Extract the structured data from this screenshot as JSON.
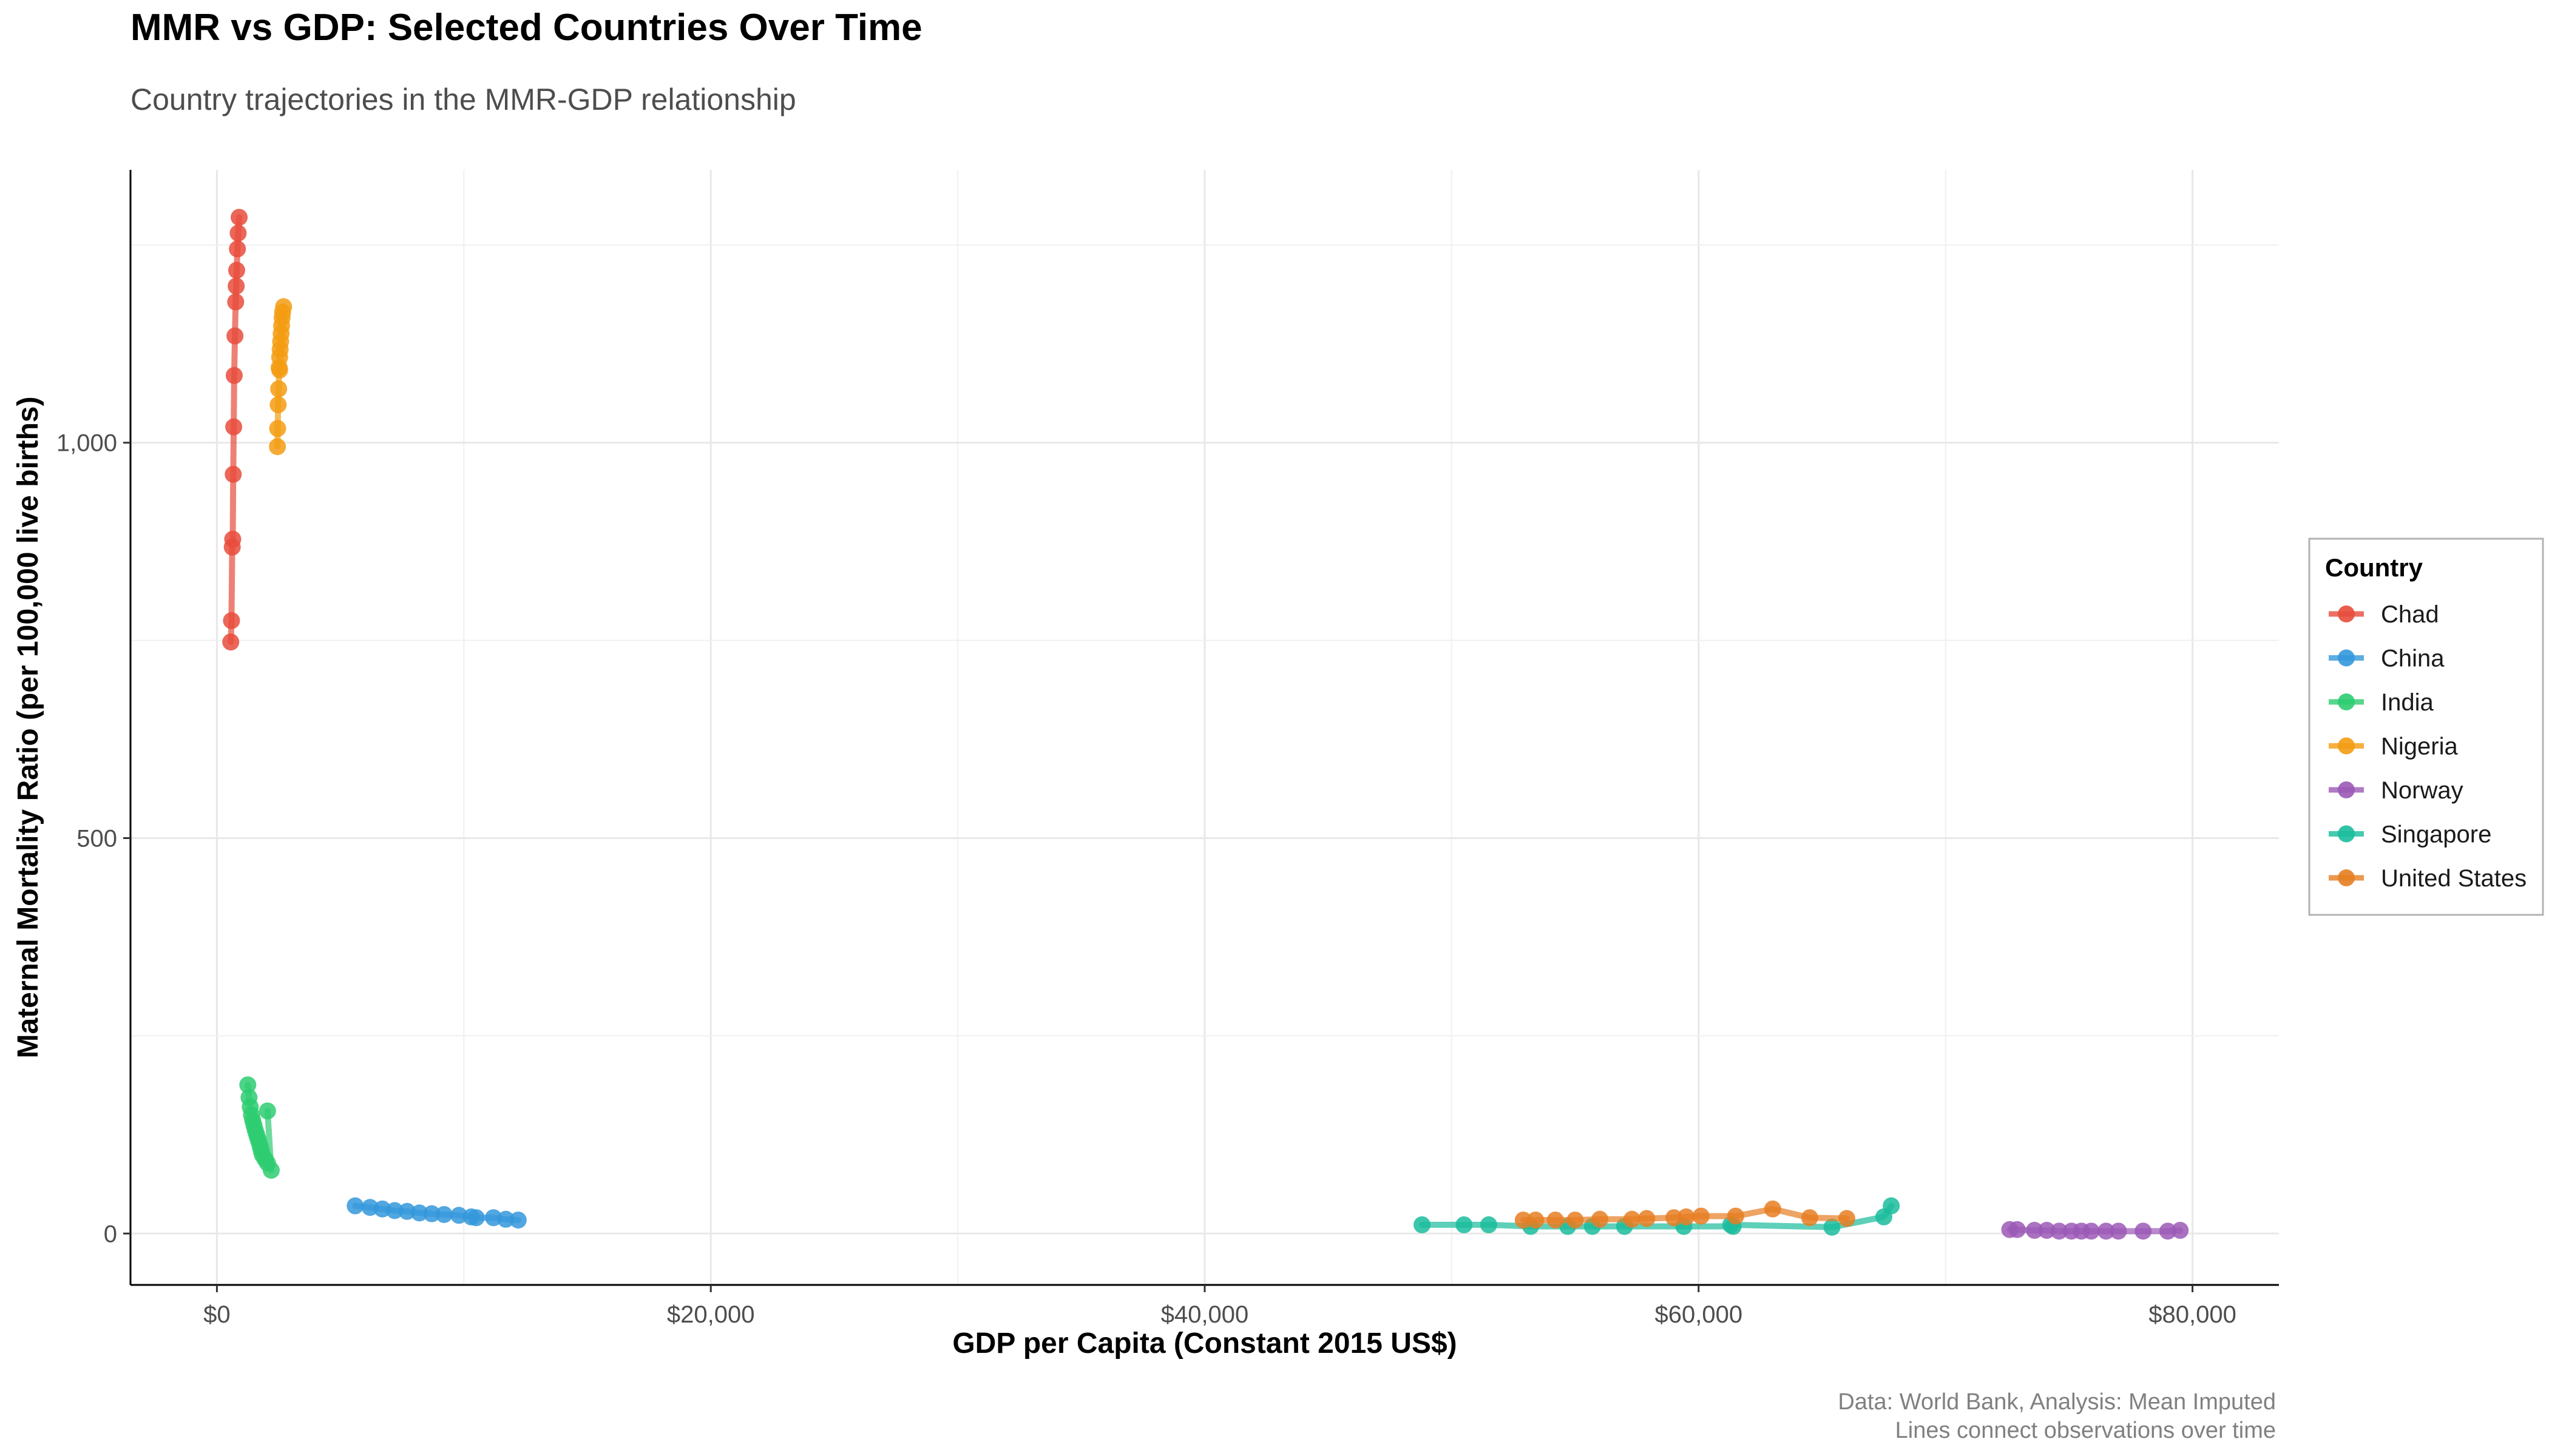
{
  "chart_data": {
    "type": "line",
    "title": "MMR vs GDP: Selected Countries Over Time",
    "subtitle": "Country trajectories in the MMR-GDP relationship",
    "xlabel": "GDP per Capita (Constant 2015 US$)",
    "ylabel": "Maternal Mortality Ratio (per 100,000 live births)",
    "xlim": [
      -3500,
      83500
    ],
    "ylim": [
      -65,
      1345
    ],
    "x_ticks": [
      0,
      20000,
      40000,
      60000,
      80000
    ],
    "x_tick_labels": [
      "$0",
      "$20,000",
      "$40,000",
      "$60,000",
      "$80,000"
    ],
    "y_ticks": [
      0,
      500,
      1000
    ],
    "y_tick_labels": [
      "0",
      "500",
      "1,000"
    ],
    "grid": true,
    "legend": {
      "title": "Country",
      "position": "right"
    },
    "caption": [
      "Data: World Bank, Analysis: Mean Imputed",
      "Lines connect observations over time"
    ],
    "series": [
      {
        "name": "Chad",
        "color": "#E74C3C",
        "points": [
          [
            560,
            748
          ],
          [
            590,
            775
          ],
          [
            620,
            868
          ],
          [
            640,
            878
          ],
          [
            660,
            960
          ],
          [
            680,
            1020
          ],
          [
            700,
            1085
          ],
          [
            730,
            1135
          ],
          [
            760,
            1178
          ],
          [
            780,
            1198
          ],
          [
            800,
            1218
          ],
          [
            830,
            1245
          ],
          [
            860,
            1265
          ],
          [
            900,
            1285
          ]
        ]
      },
      {
        "name": "Nigeria",
        "color": "#F39C12",
        "points": [
          [
            2450,
            995
          ],
          [
            2460,
            1018
          ],
          [
            2480,
            1048
          ],
          [
            2500,
            1068
          ],
          [
            2520,
            1095
          ],
          [
            2540,
            1108
          ],
          [
            2560,
            1118
          ],
          [
            2580,
            1128
          ],
          [
            2600,
            1138
          ],
          [
            2620,
            1148
          ],
          [
            2640,
            1158
          ],
          [
            2660,
            1165
          ],
          [
            2700,
            1172
          ],
          [
            2540,
            1092
          ]
        ]
      },
      {
        "name": "India",
        "color": "#2ECC71",
        "points": [
          [
            1250,
            188
          ],
          [
            1300,
            172
          ],
          [
            1350,
            160
          ],
          [
            1400,
            150
          ],
          [
            1450,
            143
          ],
          [
            1500,
            137
          ],
          [
            1550,
            131
          ],
          [
            1600,
            126
          ],
          [
            1650,
            121
          ],
          [
            1700,
            116
          ],
          [
            1750,
            110
          ],
          [
            1800,
            104
          ],
          [
            1850,
            99
          ],
          [
            1950,
            94
          ],
          [
            2050,
            89
          ],
          [
            2200,
            80
          ],
          [
            2050,
            155
          ]
        ]
      },
      {
        "name": "China",
        "color": "#3498DB",
        "points": [
          [
            5600,
            35
          ],
          [
            6200,
            33
          ],
          [
            6700,
            31
          ],
          [
            7200,
            29
          ],
          [
            7700,
            28
          ],
          [
            8200,
            26
          ],
          [
            8700,
            25
          ],
          [
            9200,
            24
          ],
          [
            9800,
            23
          ],
          [
            10300,
            21
          ],
          [
            10500,
            20
          ],
          [
            11200,
            20
          ],
          [
            11700,
            18
          ],
          [
            12200,
            17
          ]
        ]
      },
      {
        "name": "Singapore",
        "color": "#1ABC9C",
        "points": [
          [
            48800,
            11
          ],
          [
            50500,
            11
          ],
          [
            51500,
            11
          ],
          [
            53200,
            9
          ],
          [
            54700,
            9
          ],
          [
            55700,
            9
          ],
          [
            57000,
            9
          ],
          [
            59400,
            9
          ],
          [
            61400,
            9
          ],
          [
            61300,
            11
          ],
          [
            65400,
            8
          ],
          [
            67500,
            21
          ],
          [
            67800,
            35
          ]
        ]
      },
      {
        "name": "United States",
        "color": "#E67E22",
        "points": [
          [
            52900,
            17
          ],
          [
            53400,
            17
          ],
          [
            54200,
            17
          ],
          [
            55000,
            17
          ],
          [
            56000,
            18
          ],
          [
            57300,
            18
          ],
          [
            57900,
            19
          ],
          [
            59000,
            20
          ],
          [
            59500,
            21
          ],
          [
            60100,
            22
          ],
          [
            61500,
            22
          ],
          [
            63000,
            31
          ],
          [
            64500,
            20
          ],
          [
            66000,
            19
          ]
        ]
      },
      {
        "name": "Norway",
        "color": "#9B59B6",
        "points": [
          [
            72600,
            5
          ],
          [
            72900,
            5
          ],
          [
            73600,
            4
          ],
          [
            74100,
            4
          ],
          [
            74600,
            3
          ],
          [
            75100,
            3
          ],
          [
            75500,
            3
          ],
          [
            75900,
            3
          ],
          [
            76500,
            3
          ],
          [
            77000,
            3
          ],
          [
            78000,
            3
          ],
          [
            79000,
            3
          ],
          [
            79500,
            4
          ]
        ]
      }
    ]
  }
}
